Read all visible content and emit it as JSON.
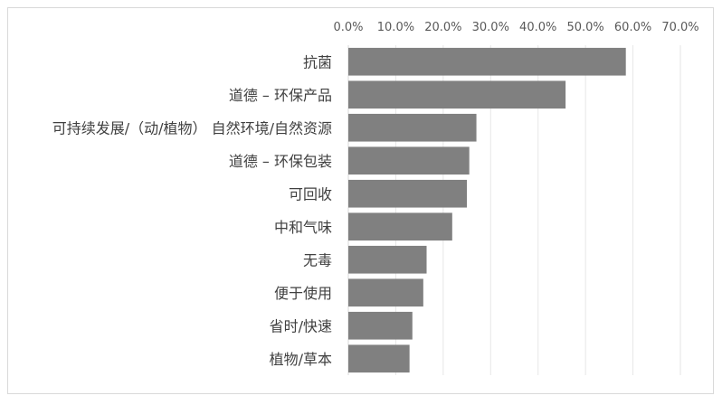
{
  "chart_data": {
    "type": "bar",
    "orientation": "horizontal",
    "x_axis_position": "top",
    "categories": [
      "抗菌",
      "道德 – 环保产品",
      "可持续发展/（动/植物） 自然环境/自然资源",
      "道德 – 环保包装",
      "可回收",
      "中和气味",
      "无毒",
      "便于使用",
      "省时/快速",
      "植物/草本"
    ],
    "values": [
      58.5,
      45.8,
      27.0,
      25.5,
      25.0,
      21.9,
      16.5,
      15.8,
      13.5,
      12.9
    ],
    "xlim": [
      0,
      70
    ],
    "xticks": [
      0,
      10,
      20,
      30,
      40,
      50,
      60,
      70
    ],
    "xtick_labels": [
      "0.0%",
      "10.0%",
      "20.0%",
      "30.0%",
      "40.0%",
      "50.0%",
      "60.0%",
      "70.0%"
    ],
    "bar_color": "#808080",
    "grid": true,
    "grid_color": "#e6e6e6",
    "legend": "none",
    "title": "",
    "xlabel": "",
    "ylabel": ""
  }
}
